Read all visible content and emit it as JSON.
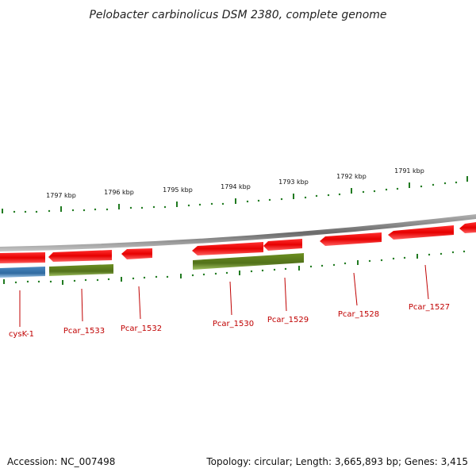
{
  "title": "Pelobacter carbinolicus DSM 2380, complete genome",
  "scale_ticks": [
    {
      "label": "1797 kbp"
    },
    {
      "label": "1796 kbp"
    },
    {
      "label": "1795 kbp"
    },
    {
      "label": "1794 kbp"
    },
    {
      "label": "1793 kbp"
    },
    {
      "label": "1792 kbp"
    },
    {
      "label": "1791 kbp"
    }
  ],
  "genes": [
    {
      "label": "cysK-1",
      "strand": "reverse",
      "color": "#e01010"
    },
    {
      "label": "Pcar_1533",
      "strand": "reverse",
      "color": "#e01010"
    },
    {
      "label": "Pcar_1532",
      "strand": "reverse",
      "color": "#e01010"
    },
    {
      "label": "Pcar_1530",
      "strand": "reverse",
      "color": "#e01010"
    },
    {
      "label": "Pcar_1529",
      "strand": "reverse",
      "color": "#e01010"
    },
    {
      "label": "Pcar_1528",
      "strand": "reverse",
      "color": "#e01010"
    },
    {
      "label": "Pcar_1527",
      "strand": "reverse",
      "color": "#e01010"
    }
  ],
  "colors": {
    "forward_gene": "#e01010",
    "rna_blue": "#3a78b0",
    "rna_green": "#5a7d1a",
    "backbone": "#808080",
    "tick": "#207a20",
    "label": "#c00000"
  },
  "footer": {
    "accession": "Accession: NC_007498",
    "topology": "Topology: circular; Length: 3,665,893 bp; Genes: 3,415"
  }
}
